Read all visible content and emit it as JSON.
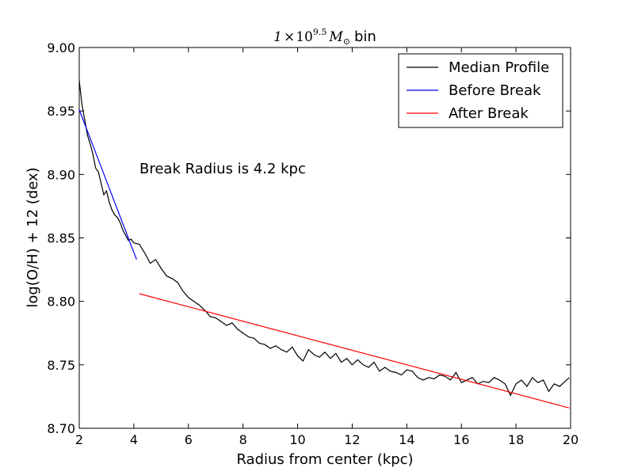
{
  "chart_data": {
    "type": "line",
    "title": {
      "prefix": "1",
      "times": "×",
      "base": "10",
      "exponent": "9.5",
      "mass_symbol": "M",
      "mass_subscript": "⊙",
      "suffix": "bin"
    },
    "xlabel": "Radius from center (kpc)",
    "ylabel": "log(O/H) + 12 (dex)",
    "xlim": [
      2,
      20
    ],
    "ylim": [
      8.7,
      9.0
    ],
    "x_ticks": [
      2,
      4,
      6,
      8,
      10,
      12,
      14,
      16,
      18,
      20
    ],
    "x_tick_labels": [
      "2",
      "4",
      "6",
      "8",
      "10",
      "12",
      "14",
      "16",
      "18",
      "20"
    ],
    "y_ticks": [
      8.7,
      8.75,
      8.8,
      8.85,
      8.9,
      8.95,
      9.0
    ],
    "y_tick_labels": [
      "8.70",
      "8.75",
      "8.80",
      "8.85",
      "8.90",
      "8.95",
      "9.00"
    ],
    "grid": false,
    "legend_position": "top-right",
    "annotation": "Break Radius is 4.2 kpc",
    "series": [
      {
        "name": "Median Profile",
        "color": "#000000",
        "x": [
          2.0,
          2.1,
          2.2,
          2.3,
          2.4,
          2.5,
          2.6,
          2.7,
          2.8,
          2.9,
          3.0,
          3.1,
          3.2,
          3.3,
          3.4,
          3.5,
          3.6,
          3.7,
          3.8,
          3.9,
          4.0,
          4.2,
          4.4,
          4.6,
          4.8,
          5.0,
          5.2,
          5.4,
          5.6,
          5.8,
          6.0,
          6.2,
          6.4,
          6.6,
          6.8,
          7.0,
          7.2,
          7.4,
          7.6,
          7.8,
          8.0,
          8.2,
          8.4,
          8.6,
          8.8,
          9.0,
          9.2,
          9.4,
          9.6,
          9.8,
          10.0,
          10.2,
          10.4,
          10.6,
          10.8,
          11.0,
          11.2,
          11.4,
          11.6,
          11.8,
          12.0,
          12.2,
          12.4,
          12.6,
          12.8,
          13.0,
          13.2,
          13.4,
          13.6,
          13.8,
          14.0,
          14.2,
          14.4,
          14.6,
          14.8,
          15.0,
          15.2,
          15.4,
          15.6,
          15.8,
          16.0,
          16.2,
          16.4,
          16.6,
          16.8,
          17.0,
          17.2,
          17.4,
          17.6,
          17.8,
          18.0,
          18.2,
          18.4,
          18.6,
          18.8,
          19.0,
          19.2,
          19.4,
          19.6,
          19.8,
          19.95
        ],
        "y": [
          8.974,
          8.955,
          8.943,
          8.931,
          8.924,
          8.916,
          8.905,
          8.902,
          8.893,
          8.884,
          8.887,
          8.878,
          8.872,
          8.868,
          8.866,
          8.862,
          8.856,
          8.852,
          8.848,
          8.849,
          8.846,
          8.845,
          8.838,
          8.83,
          8.833,
          8.826,
          8.82,
          8.818,
          8.815,
          8.808,
          8.803,
          8.8,
          8.797,
          8.793,
          8.788,
          8.787,
          8.784,
          8.781,
          8.783,
          8.778,
          8.775,
          8.772,
          8.771,
          8.767,
          8.766,
          8.763,
          8.765,
          8.762,
          8.76,
          8.764,
          8.757,
          8.753,
          8.762,
          8.758,
          8.756,
          8.76,
          8.755,
          8.759,
          8.752,
          8.755,
          8.75,
          8.754,
          8.75,
          8.748,
          8.752,
          8.745,
          8.748,
          8.745,
          8.744,
          8.742,
          8.746,
          8.745,
          8.74,
          8.738,
          8.74,
          8.739,
          8.742,
          8.741,
          8.738,
          8.744,
          8.736,
          8.738,
          8.74,
          8.735,
          8.737,
          8.736,
          8.74,
          8.738,
          8.735,
          8.726,
          8.735,
          8.738,
          8.733,
          8.74,
          8.736,
          8.738,
          8.729,
          8.735,
          8.733,
          8.737,
          8.74
        ]
      },
      {
        "name": "Before Break",
        "color": "#0000ff",
        "x": [
          2.0,
          4.1
        ],
        "y": [
          8.951,
          8.833
        ]
      },
      {
        "name": "After Break",
        "color": "#ff0000",
        "x": [
          4.2,
          19.95
        ],
        "y": [
          8.806,
          8.716
        ]
      }
    ]
  }
}
